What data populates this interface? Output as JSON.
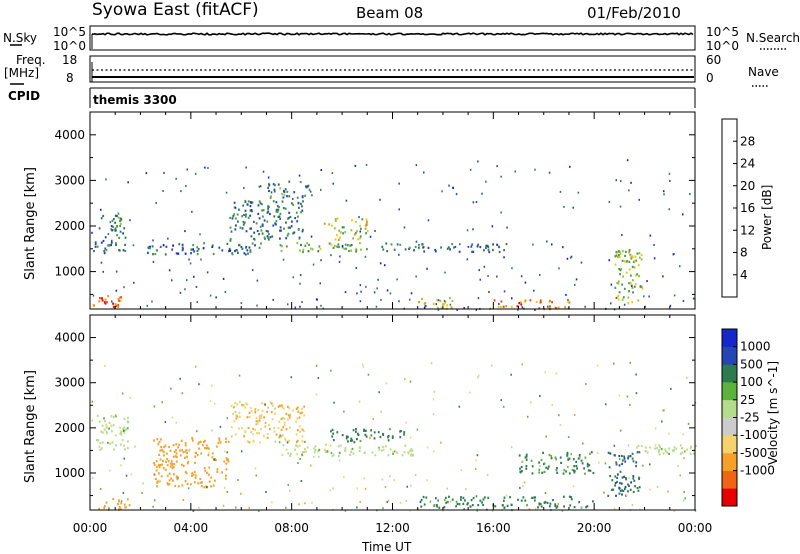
{
  "header": {
    "station": "Syowa East (fitACF)",
    "beam": "Beam 08",
    "date": "01/Feb/2010"
  },
  "nsky_panel": {
    "left_label": "N.Sky",
    "left_tick_hi": "10^5",
    "left_tick_lo": "10^0",
    "right_label": "N.Search",
    "right_tick_hi": "10^5",
    "right_tick_lo": "10^0"
  },
  "freq_panel": {
    "left_label_1": "Freq.",
    "left_label_2": "[MHz]",
    "left_tick_hi": "18",
    "left_tick_lo": "8",
    "right_label": "Nave",
    "right_tick_hi": "60",
    "right_tick_lo": "0"
  },
  "cpid_panel": {
    "label": "CPID",
    "program": "themis 3300"
  },
  "colors": {
    "power_scale": [
      "#0a1ae8",
      "#2346b4",
      "#2e7a4f",
      "#4a9a4a",
      "#8cc83c",
      "#f0c814",
      "#f58c14",
      "#e84a0a",
      "#e60000"
    ],
    "velocity_scale": [
      "#e60000",
      "#f06414",
      "#f5a028",
      "#f5d26e",
      "#cccccc",
      "#b4dc8c",
      "#5ab43c",
      "#2e7a4f",
      "#2346b4",
      "#1428c8"
    ]
  },
  "chart_data": [
    {
      "type": "heatmap",
      "panel": "power",
      "xlabel": "",
      "ylabel": "Slant Range [km]",
      "x_ticks": [
        "00:00",
        "04:00",
        "08:00",
        "12:00",
        "16:00",
        "20:00",
        "00:00"
      ],
      "xlim_hours": [
        0,
        24
      ],
      "ylim": [
        180,
        4500
      ],
      "y_ticks": [
        1000,
        2000,
        3000,
        4000
      ],
      "colorbar_label": "Power [dB]",
      "colorbar_ticks": [
        4,
        8,
        12,
        16,
        20,
        24,
        28
      ],
      "colorbar_range": [
        0,
        32
      ],
      "echo_regions": [
        {
          "t": [
            0.1,
            1.3
          ],
          "r": [
            200,
            500
          ],
          "level": 26
        },
        {
          "t": [
            0.0,
            1.4
          ],
          "r": [
            1400,
            1700
          ],
          "level": 9
        },
        {
          "t": [
            0.3,
            1.4
          ],
          "r": [
            1750,
            2300
          ],
          "level": 10
        },
        {
          "t": [
            2.2,
            6.8
          ],
          "r": [
            1400,
            1650
          ],
          "level": 7
        },
        {
          "t": [
            5.5,
            8.5
          ],
          "r": [
            1700,
            2600
          ],
          "level": 9
        },
        {
          "t": [
            7.0,
            8.8
          ],
          "r": [
            2600,
            3000
          ],
          "level": 10
        },
        {
          "t": [
            7.5,
            11.0
          ],
          "r": [
            1450,
            1650
          ],
          "level": 14
        },
        {
          "t": [
            9.2,
            11.0
          ],
          "r": [
            1700,
            2200
          ],
          "level": 18
        },
        {
          "t": [
            11.5,
            16.5
          ],
          "r": [
            1450,
            1650
          ],
          "level": 8
        },
        {
          "t": [
            13.0,
            14.5
          ],
          "r": [
            200,
            450
          ],
          "level": 20
        },
        {
          "t": [
            15.8,
            19.0
          ],
          "r": [
            200,
            400
          ],
          "level": 24
        },
        {
          "t": [
            20.8,
            21.9
          ],
          "r": [
            300,
            1500
          ],
          "level": 16
        }
      ]
    },
    {
      "type": "heatmap",
      "panel": "velocity",
      "xlabel": "Time UT",
      "ylabel": "Slant Range [km]",
      "x_ticks": [
        "00:00",
        "04:00",
        "08:00",
        "12:00",
        "16:00",
        "20:00",
        "00:00"
      ],
      "xlim_hours": [
        0,
        24
      ],
      "ylim": [
        180,
        4500
      ],
      "y_ticks": [
        1000,
        2000,
        3000,
        4000
      ],
      "colorbar_label": "Velocity [m s^-1]",
      "colorbar_ticks": [
        "1000",
        "500",
        "100",
        "25",
        "-25",
        "-100",
        "-500",
        "-1000"
      ],
      "echo_regions": [
        {
          "t": [
            0.1,
            1.6
          ],
          "r": [
            200,
            450
          ],
          "vel": -300
        },
        {
          "t": [
            0.2,
            1.5
          ],
          "r": [
            1500,
            2300
          ],
          "vel": 0
        },
        {
          "t": [
            2.5,
            5.5
          ],
          "r": [
            700,
            1800
          ],
          "vel": -300
        },
        {
          "t": [
            5.5,
            8.5
          ],
          "r": [
            1700,
            2600
          ],
          "vel": -80
        },
        {
          "t": [
            7.5,
            12.8
          ],
          "r": [
            1400,
            1650
          ],
          "vel": 0
        },
        {
          "t": [
            9.5,
            12.5
          ],
          "r": [
            1700,
            2000
          ],
          "vel": 250
        },
        {
          "t": [
            13.0,
            20.0
          ],
          "r": [
            250,
            500
          ],
          "vel": 250
        },
        {
          "t": [
            17.0,
            20.0
          ],
          "r": [
            1000,
            1500
          ],
          "vel": 150
        },
        {
          "t": [
            20.5,
            21.8
          ],
          "r": [
            500,
            1500
          ],
          "vel": 400
        },
        {
          "t": [
            21.5,
            24.0
          ],
          "r": [
            1400,
            1650
          ],
          "vel": 0
        }
      ]
    }
  ]
}
